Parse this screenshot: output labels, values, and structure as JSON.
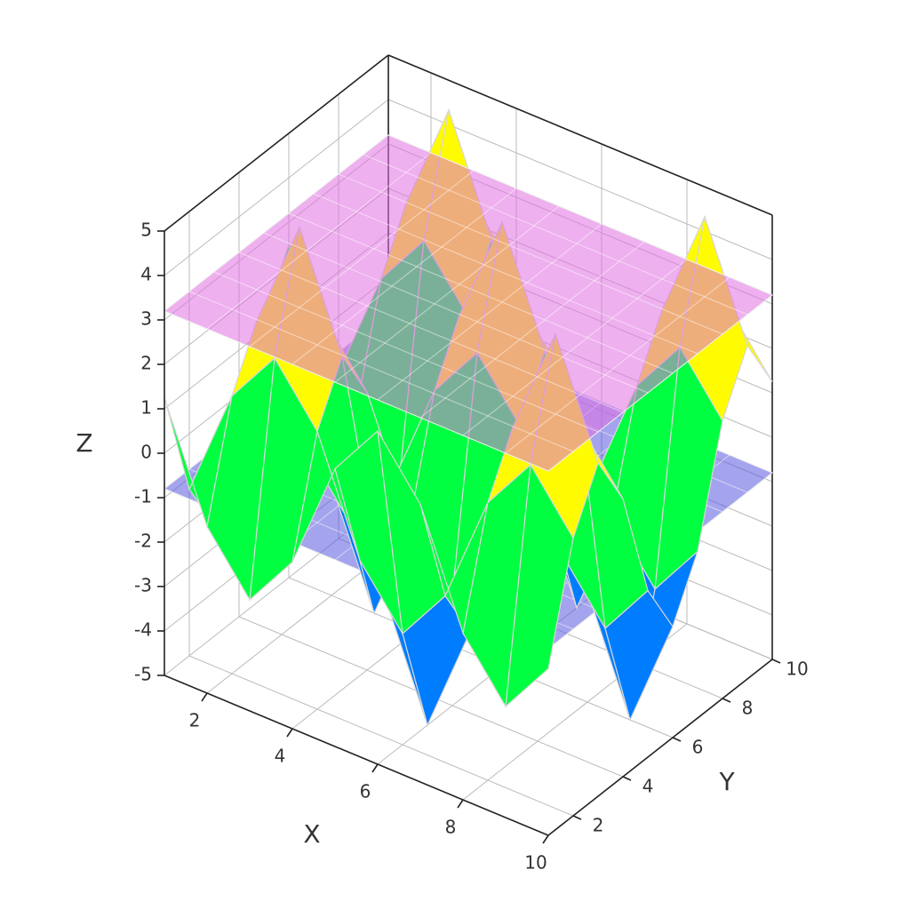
{
  "chart_data": {
    "type": "surface3d",
    "xlabel": "X",
    "ylabel": "Y",
    "zlabel": "Z",
    "x": [
      1,
      2,
      3,
      4,
      5,
      6,
      7,
      8,
      9,
      10
    ],
    "y": [
      1,
      2,
      3,
      4,
      5,
      6,
      7,
      8,
      9,
      10
    ],
    "z": [
      [
        1.25,
        -1.25,
        -2.5,
        -1.25,
        1.25,
        2.5,
        1.25,
        -1.25,
        -2.5,
        -1.25
      ],
      [
        -1.25,
        1.25,
        2.5,
        1.25,
        -1.25,
        -2.5,
        -1.25,
        1.25,
        2.5,
        1.25
      ],
      [
        -2.5,
        2.5,
        5,
        2.5,
        -2.5,
        -5,
        -2.5,
        2.5,
        5,
        2.5
      ],
      [
        -1.25,
        1.25,
        2.5,
        1.25,
        -1.25,
        -2.5,
        -1.25,
        1.25,
        2.5,
        1.25
      ],
      [
        1.25,
        -1.25,
        -2.5,
        -1.25,
        1.25,
        2.5,
        1.25,
        -1.25,
        -2.5,
        -1.25
      ],
      [
        2.5,
        -2.5,
        -5,
        -2.5,
        2.5,
        5,
        2.5,
        -2.5,
        -5,
        -2.5
      ],
      [
        1.25,
        -1.25,
        -2.5,
        -1.25,
        1.25,
        2.5,
        1.25,
        -1.25,
        -2.5,
        -1.25
      ],
      [
        -1.25,
        1.25,
        2.5,
        1.25,
        -1.25,
        -2.5,
        -1.25,
        1.25,
        2.5,
        1.25
      ],
      [
        -2.5,
        2.5,
        5,
        2.5,
        -2.5,
        -5,
        -2.5,
        2.5,
        5,
        2.5
      ],
      [
        -1.25,
        1.25,
        2.5,
        1.25,
        -1.25,
        -2.5,
        -1.25,
        1.25,
        2.5,
        1.25
      ]
    ],
    "planes": [
      {
        "z": -0.8,
        "color": "#5a5ae0"
      },
      {
        "z": 3.2,
        "color": "#e070e0"
      }
    ],
    "xlim": [
      1,
      10
    ],
    "ylim": [
      1,
      10
    ],
    "zlim": [
      -5,
      5
    ],
    "xticks": [
      2,
      4,
      6,
      8,
      10
    ],
    "yticks": [
      2,
      4,
      6,
      8,
      10
    ],
    "zticks": [
      -5,
      -4,
      -3,
      -2,
      -1,
      0,
      1,
      2,
      3,
      4,
      5
    ],
    "grid": true
  }
}
